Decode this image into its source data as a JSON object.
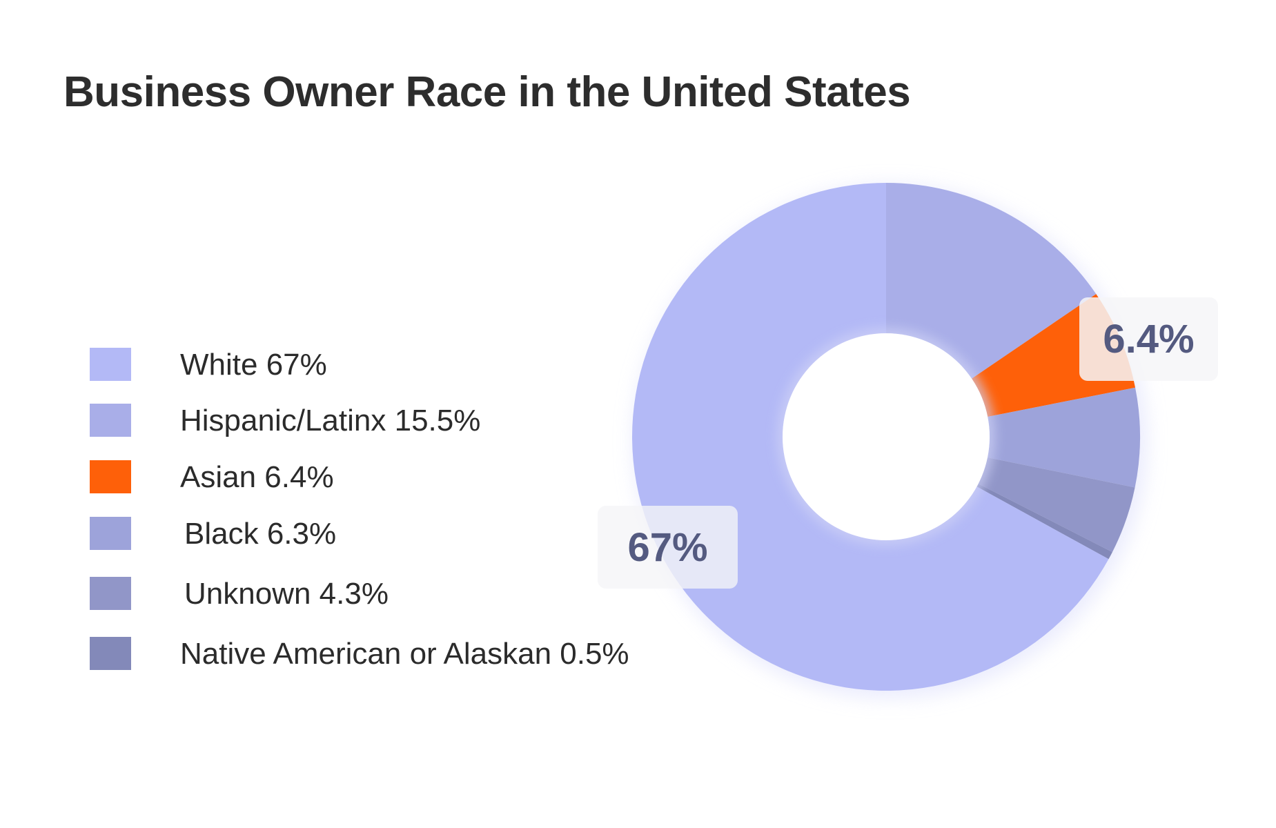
{
  "chart_data": {
    "type": "pie",
    "title": "Business Owner Race in the United States",
    "categories": [
      "White",
      "Hispanic/Latinx",
      "Asian",
      "Black",
      "Unknown",
      "Native American or Alaskan"
    ],
    "values": [
      67,
      15.5,
      6.4,
      6.3,
      4.3,
      0.5
    ],
    "colors": [
      "#b3b9f6",
      "#a9aee8",
      "#fe6009",
      "#9da3da",
      "#9196c8",
      "#8389b9"
    ],
    "legend": {
      "position": "left",
      "labels": [
        "White 67%",
        "Hispanic/Latinx 15.5%",
        "Asian 6.4%",
        "Black 6.3%",
        "Unknown 4.3%",
        "Native American or Alaskan 0.5%"
      ]
    },
    "annotations": [
      "67%",
      "6.4%"
    ],
    "donut": true
  }
}
